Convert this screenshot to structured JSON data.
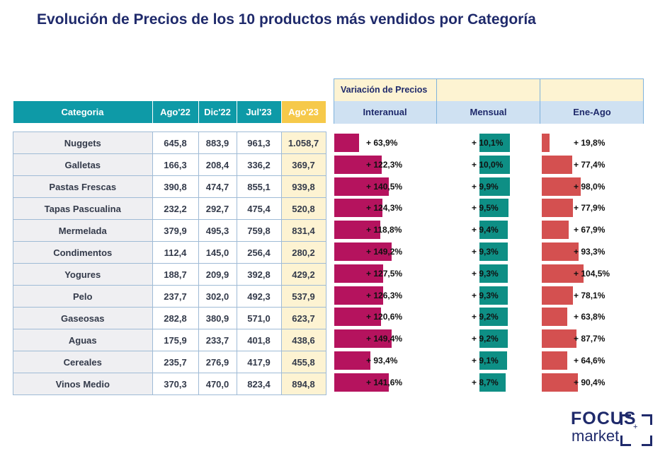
{
  "title": "Evolución de Precios de los 10 productos más vendidos por Categoría",
  "table": {
    "headers": [
      "Categoria",
      "Ago'22",
      "Dic'22",
      "Jul'23",
      "Ago'23"
    ],
    "highlight_color": "#f6c94a",
    "header_color": "#0e9aa7",
    "rows": [
      [
        "Nuggets",
        "645,8",
        "883,9",
        "961,3",
        "1.058,7"
      ],
      [
        "Galletas",
        "166,3",
        "208,4",
        "336,2",
        "369,7"
      ],
      [
        "Pastas Frescas",
        "390,8",
        "474,7",
        "855,1",
        "939,8"
      ],
      [
        "Tapas Pascualina",
        "232,2",
        "292,7",
        "475,4",
        "520,8"
      ],
      [
        "Mermelada",
        "379,9",
        "495,3",
        "759,8",
        "831,4"
      ],
      [
        "Condimentos",
        "112,4",
        "145,0",
        "256,4",
        "280,2"
      ],
      [
        "Yogures",
        "188,7",
        "209,9",
        "392,8",
        "429,2"
      ],
      [
        "Pelo",
        "237,7",
        "302,0",
        "492,3",
        "537,9"
      ],
      [
        "Gaseosas",
        "282,8",
        "380,9",
        "571,0",
        "623,7"
      ],
      [
        "Aguas",
        "175,9",
        "233,7",
        "401,8",
        "438,6"
      ],
      [
        "Cereales",
        "235,7",
        "276,9",
        "417,9",
        "455,8"
      ],
      [
        "Vinos Medio",
        "370,3",
        "470,0",
        "823,4",
        "894,8"
      ]
    ]
  },
  "variation_header": {
    "group_label": "Variación de Precios",
    "columns": [
      "Interanual",
      "Mensual",
      "Ene-Ago"
    ]
  },
  "chart_data": {
    "type": "bar",
    "categories": [
      "Nuggets",
      "Galletas",
      "Pastas Frescas",
      "Tapas Pascualina",
      "Mermelada",
      "Condimentos",
      "Yogures",
      "Pelo",
      "Gaseosas",
      "Aguas",
      "Cereales",
      "Vinos Medio"
    ],
    "series": [
      {
        "name": "Interanual",
        "color": "#b5135e",
        "values": [
          63.9,
          122.3,
          140.5,
          124.3,
          118.8,
          149.2,
          127.5,
          126.3,
          120.6,
          149.4,
          93.4,
          141.6
        ],
        "labels": [
          "+ 63,9%",
          "+ 122,3%",
          "+ 140,5%",
          "+ 124,3%",
          "+ 118,8%",
          "+ 149,2%",
          "+ 127,5%",
          "+ 126,3%",
          "+ 120,6%",
          "+ 149,4%",
          "+ 93,4%",
          "+ 141,6%"
        ]
      },
      {
        "name": "Mensual",
        "color": "#0e8f85",
        "values": [
          10.1,
          10.0,
          9.9,
          9.5,
          9.4,
          9.3,
          9.3,
          9.3,
          9.2,
          9.2,
          9.1,
          8.7
        ],
        "labels": [
          "+ 10,1%",
          "+ 10,0%",
          "+ 9,9%",
          "+ 9,5%",
          "+ 9,4%",
          "+ 9,3%",
          "+ 9,3%",
          "+ 9,3%",
          "+ 9,2%",
          "+ 9,2%",
          "+ 9,1%",
          "+ 8,7%"
        ]
      },
      {
        "name": "Ene-Ago",
        "color": "#d45050",
        "values": [
          19.8,
          77.4,
          98.0,
          77.9,
          67.9,
          93.3,
          104.5,
          78.1,
          63.8,
          87.7,
          64.6,
          90.4
        ],
        "labels": [
          "+ 19,8%",
          "+ 77,4%",
          "+ 98,0%",
          "+ 77,9%",
          "+ 67,9%",
          "+ 93,3%",
          "+ 104,5%",
          "+ 78,1%",
          "+ 63,8%",
          "+ 87,7%",
          "+ 64,6%",
          "+ 90,4%"
        ]
      }
    ]
  },
  "logo": {
    "line1": "FOCUS",
    "line2": "market",
    "plus": "+"
  }
}
